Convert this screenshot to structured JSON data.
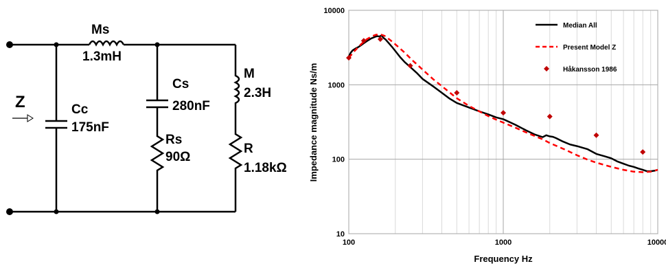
{
  "circuit": {
    "z_label": "Z",
    "ms": {
      "name": "Ms",
      "value": "1.3mH"
    },
    "cc": {
      "name": "Cc",
      "value": "175nF"
    },
    "cs": {
      "name": "Cs",
      "value": "280nF"
    },
    "rs": {
      "name": "Rs",
      "value": "90Ω"
    },
    "m": {
      "name": "M",
      "value": "2.3H"
    },
    "r": {
      "name": "R",
      "value": "1.18kΩ"
    }
  },
  "chart_data": {
    "type": "line",
    "xlabel": "Frequency Hz",
    "ylabel": "Impedance magnitude Ns/m",
    "xscale": "log",
    "yscale": "log",
    "xlim": [
      100,
      10000
    ],
    "ylim": [
      10,
      10000
    ],
    "xticks": [
      100,
      1000,
      10000
    ],
    "xtick_labels": [
      "100",
      "1000",
      "10000"
    ],
    "yticks": [
      10,
      100,
      1000,
      10000
    ],
    "ytick_labels": [
      "10",
      "100",
      "1000",
      "10000"
    ],
    "grid": true,
    "legend_position": "top-right",
    "series": [
      {
        "name": "Median All",
        "style": "solid",
        "color": "#000000",
        "x": [
          100,
          103,
          106,
          110,
          115,
          120,
          126,
          132,
          140,
          148,
          153,
          158,
          163,
          168,
          173,
          180,
          190,
          200,
          215,
          230,
          250,
          275,
          300,
          350,
          400,
          450,
          500,
          600,
          700,
          800,
          900,
          1000,
          1200,
          1400,
          1600,
          1800,
          1900,
          2000,
          2100,
          2200,
          2400,
          2700,
          3000,
          3500,
          4000,
          4500,
          5000,
          5500,
          6000,
          6500,
          7000,
          7500,
          8000,
          8500,
          9000,
          9500,
          10000
        ],
        "values": [
          2400,
          2700,
          2900,
          3050,
          3200,
          3400,
          3650,
          3900,
          4200,
          4400,
          4500,
          4450,
          4600,
          4250,
          4050,
          3700,
          3250,
          2850,
          2350,
          2020,
          1730,
          1450,
          1200,
          960,
          780,
          650,
          570,
          495,
          440,
          400,
          365,
          345,
          290,
          245,
          215,
          198,
          210,
          203,
          200,
          192,
          175,
          158,
          150,
          137,
          118,
          110,
          103,
          93,
          87,
          82,
          79,
          75,
          72,
          69,
          69,
          70,
          72
        ]
      },
      {
        "name": "Present Model Z",
        "style": "dashed",
        "color": "#ff0000",
        "x": [
          100,
          110,
          120,
          130,
          140,
          150,
          160,
          170,
          185,
          200,
          230,
          260,
          300,
          350,
          400,
          500,
          600,
          700,
          800,
          900,
          1000,
          1200,
          1400,
          1600,
          1800,
          2000,
          2500,
          3000,
          3500,
          4000,
          5000,
          6000,
          7000,
          8000,
          9000,
          10000
        ],
        "values": [
          2300,
          2900,
          3500,
          4050,
          4450,
          4700,
          4750,
          4550,
          4000,
          3500,
          2700,
          2100,
          1600,
          1200,
          960,
          660,
          520,
          440,
          380,
          340,
          310,
          265,
          230,
          205,
          185,
          165,
          135,
          113,
          99,
          90,
          79,
          72,
          68,
          67,
          68,
          72
        ]
      },
      {
        "name": "Håkansson 1986",
        "style": "markers",
        "marker": "diamond",
        "color": "#c00000",
        "x": [
          100,
          125,
          160,
          250,
          500,
          1000,
          2000,
          4000,
          8000
        ],
        "values": [
          2300,
          3900,
          4100,
          1800,
          780,
          420,
          375,
          210,
          125
        ]
      }
    ]
  }
}
